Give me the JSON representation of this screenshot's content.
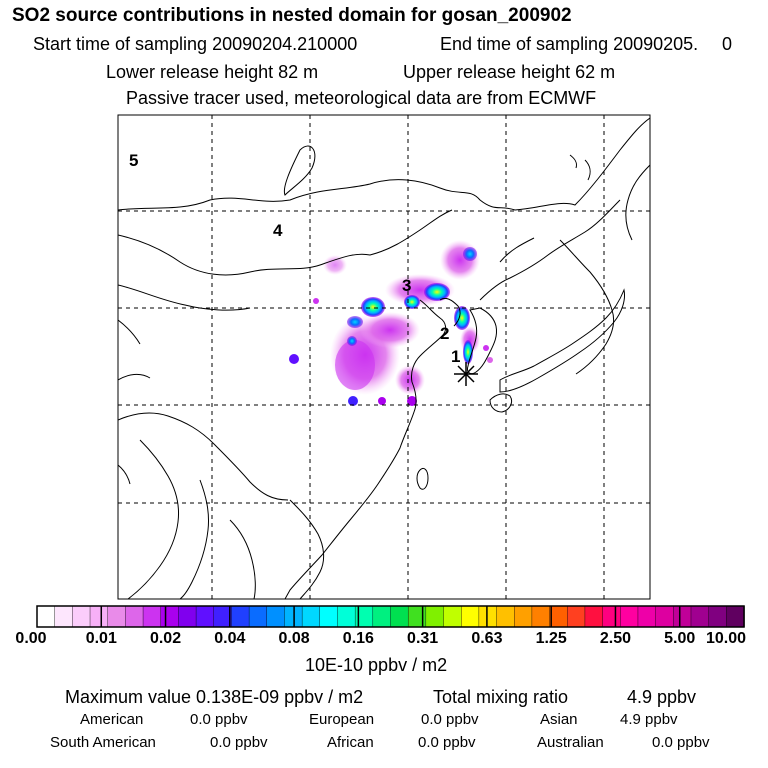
{
  "header": {
    "title": "SO2 source contributions in nested domain for gosan_200902",
    "start_label": "Start time of sampling 20090204.210000",
    "end_label": "End time of sampling 20090205.",
    "end_suffix": "0",
    "lower_height": "Lower release height   82 m",
    "upper_height": "Upper release height   62 m",
    "tracer_note": "Passive tracer used, meteorological data are from ECMWF"
  },
  "map": {
    "region_labels": [
      "5",
      "4",
      "3",
      "2",
      "1"
    ],
    "receptor_icon": "asterisk-star-icon"
  },
  "colorbar": {
    "tick_labels": [
      "0.00",
      "0.01",
      "0.02",
      "0.04",
      "0.08",
      "0.16",
      "0.31",
      "0.63",
      "1.25",
      "2.50",
      "5.00",
      "10.00"
    ],
    "unit": "10E-10 ppbv / m2",
    "colors": [
      "#ffffff",
      "#fde6fd",
      "#fbcdfb",
      "#f7b0f7",
      "#e98be9",
      "#dd66ea",
      "#cc33f0",
      "#aa00ee",
      "#8000ee",
      "#6010ff",
      "#4020ff",
      "#2040ff",
      "#0a6cff",
      "#0090ff",
      "#00b4ff",
      "#00d8ff",
      "#00ffff",
      "#00ffd8",
      "#00ffb0",
      "#00f080",
      "#00e050",
      "#40e020",
      "#80f000",
      "#c0ff00",
      "#ffff00",
      "#ffe000",
      "#ffc000",
      "#ffa000",
      "#ff8000",
      "#ff6000",
      "#ff4020",
      "#ff1040",
      "#ff0080",
      "#ff00a0",
      "#ee00a8",
      "#dd00a0",
      "#c00098",
      "#a00090",
      "#800080",
      "#600060"
    ]
  },
  "summary": {
    "max_value": "Maximum value  0.138E-09 ppbv / m2",
    "total_label": "Total mixing ratio",
    "total_value": "4.9 ppbv"
  },
  "regions": [
    {
      "name": "American",
      "value": "0.0 ppbv"
    },
    {
      "name": "European",
      "value": "0.0 ppbv"
    },
    {
      "name": "Asian",
      "value": "4.9 ppbv"
    },
    {
      "name": "South American",
      "value": "0.0 ppbv"
    },
    {
      "name": "African",
      "value": "0.0 ppbv"
    },
    {
      "name": "Australian",
      "value": "0.0 ppbv"
    }
  ]
}
